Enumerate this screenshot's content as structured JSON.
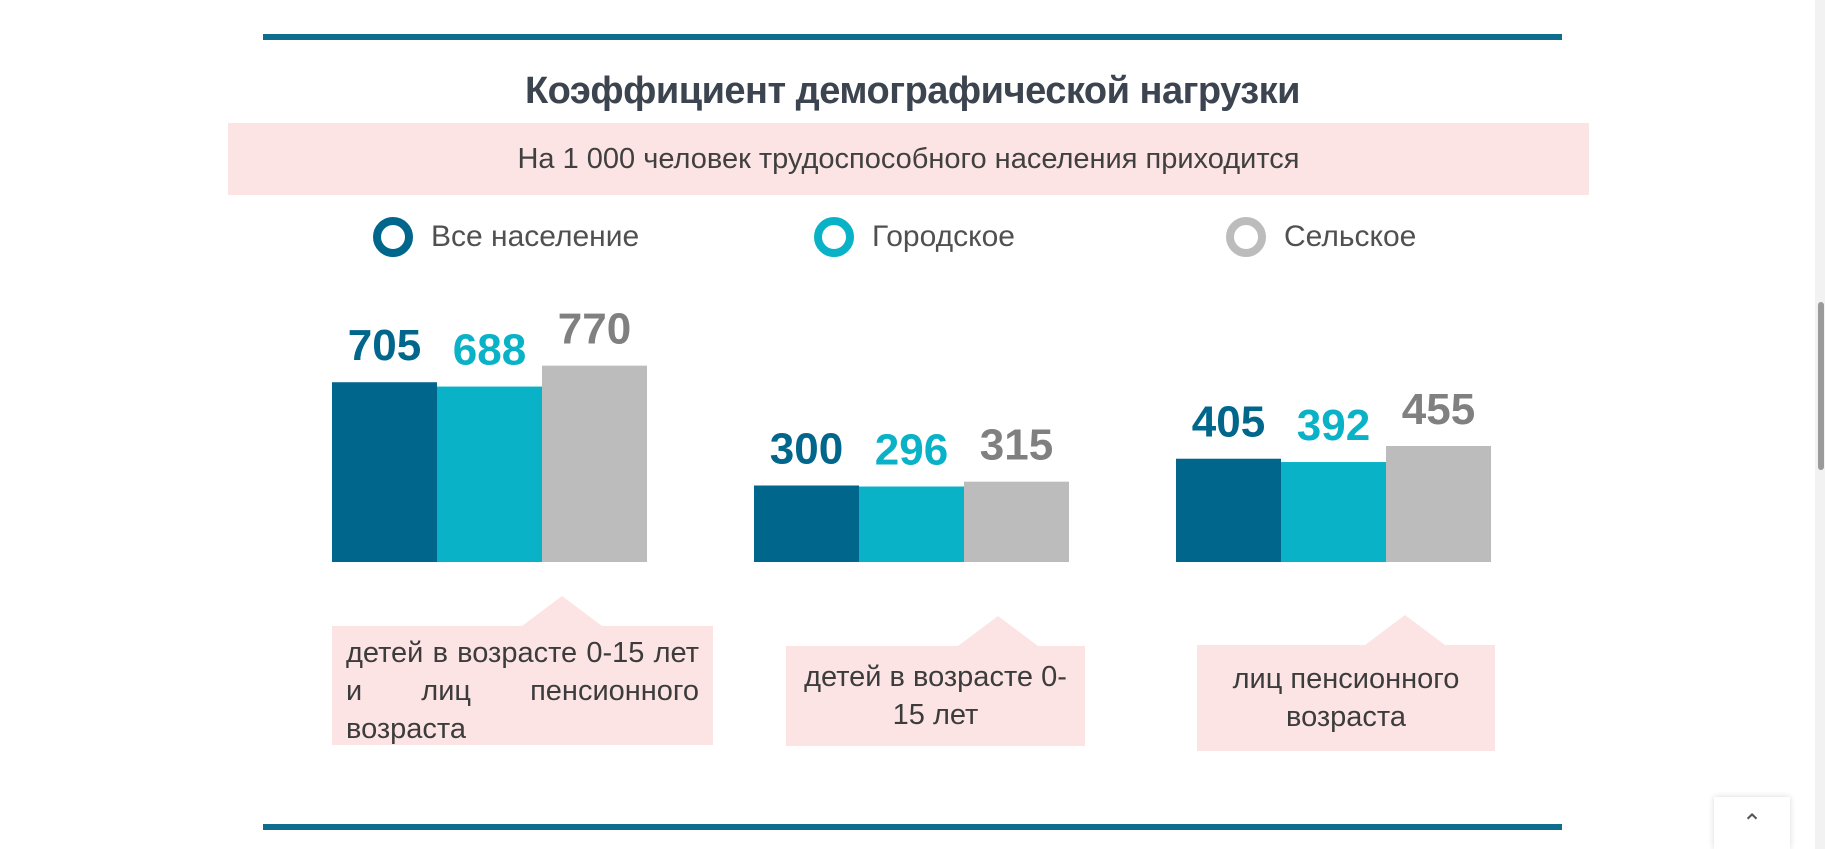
{
  "title": "Коэффициент демографической нагрузки",
  "subtitle": "На 1 000 человек трудоспособного населения приходится",
  "legend": [
    {
      "label": "Все население",
      "color": "#00668c"
    },
    {
      "label": "Городское",
      "color": "#09b2c6"
    },
    {
      "label": "Сельское",
      "color": "#bcbcbc"
    }
  ],
  "label_colors": [
    "#00668c",
    "#09b2c6",
    "#808080"
  ],
  "chart_data": {
    "type": "bar",
    "categories": [
      "детей в возрасте 0-15 лет и лиц пенсионного возраста",
      "детей в возрасте 0-15 лет",
      "лиц пенсионного возраста"
    ],
    "series": [
      {
        "name": "Все население",
        "values": [
          705,
          300,
          405
        ]
      },
      {
        "name": "Городское",
        "values": [
          688,
          296,
          392
        ]
      },
      {
        "name": "Сельское",
        "values": [
          770,
          315,
          455
        ]
      }
    ],
    "ylim": [
      0,
      800
    ]
  },
  "scroll_top_icon": "chevron-up-icon",
  "scroll_top_glyph": "⌃"
}
